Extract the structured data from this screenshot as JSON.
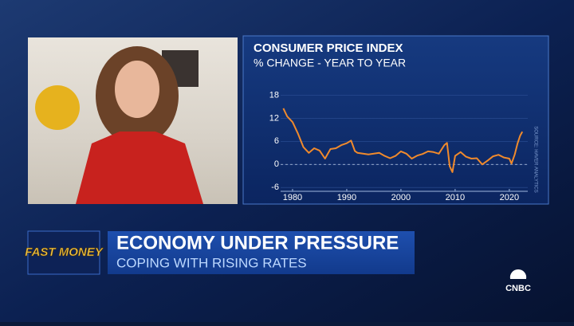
{
  "chart_data": {
    "type": "line",
    "title": "CONSUMER PRICE INDEX",
    "subtitle": "% CHANGE - YEAR TO YEAR",
    "source": "SOURCE: HAVER ANALYTICS",
    "x": [
      1978.3,
      1979,
      1980,
      1981,
      1982,
      1983,
      1984,
      1985,
      1986,
      1987,
      1988,
      1989,
      1990,
      1990.8,
      1991.5,
      1992,
      1993,
      1994,
      1995,
      1996,
      1997,
      1998,
      1999,
      2000,
      2001,
      2002,
      2003,
      2004,
      2005,
      2006,
      2007,
      2008,
      2008.5,
      2009,
      2009.5,
      2010,
      2011,
      2012,
      2013,
      2014,
      2015,
      2016,
      2017,
      2018,
      2019,
      2020,
      2020.4,
      2021,
      2021.5,
      2022,
      2022.4
    ],
    "series": [
      {
        "color": "#f08a2c",
        "values": [
          14.6,
          12.5,
          11,
          8,
          4.5,
          3,
          4.2,
          3.6,
          1.5,
          4,
          4.2,
          5,
          5.5,
          6.2,
          3.5,
          3,
          2.8,
          2.6,
          2.8,
          3,
          2.2,
          1.6,
          2.2,
          3.4,
          2.8,
          1.5,
          2.3,
          2.7,
          3.4,
          3.2,
          2.8,
          5,
          5.6,
          -0.5,
          -2,
          2.2,
          3.2,
          2,
          1.5,
          1.6,
          0,
          1,
          2.1,
          2.5,
          1.8,
          1.5,
          0.2,
          2.6,
          5.4,
          7.5,
          8.5
        ]
      }
    ],
    "xlim": [
      1977.8,
      2023.4
    ],
    "xticks": [
      1980,
      1990,
      2000,
      2010,
      2020
    ],
    "ylim": [
      -7,
      21
    ],
    "yticks": [
      -6,
      0,
      6,
      12,
      18
    ],
    "grid": true,
    "reference_line": 0
  },
  "lower_third": {
    "show": "FAST MONEY",
    "headline": "ECONOMY UNDER PRESSURE",
    "subheadline": "COPING WITH RISING RATES"
  },
  "network": "CNBC"
}
